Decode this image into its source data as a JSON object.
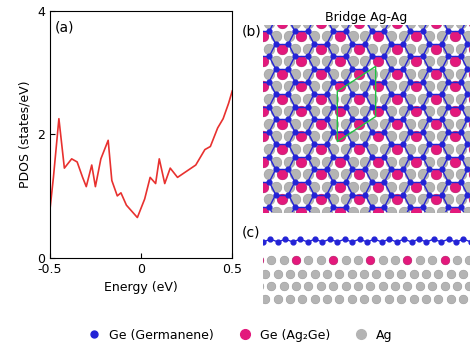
{
  "chart_data": {
    "type": "line",
    "x": [
      -0.5,
      -0.48,
      -0.45,
      -0.42,
      -0.38,
      -0.35,
      -0.32,
      -0.3,
      -0.27,
      -0.25,
      -0.22,
      -0.18,
      -0.16,
      -0.13,
      -0.11,
      -0.08,
      -0.05,
      -0.02,
      0.0,
      0.02,
      0.05,
      0.08,
      0.1,
      0.13,
      0.16,
      0.2,
      0.25,
      0.3,
      0.35,
      0.38,
      0.42,
      0.45,
      0.48,
      0.5
    ],
    "values": [
      0.75,
      1.3,
      2.25,
      1.45,
      1.6,
      1.55,
      1.3,
      1.15,
      1.5,
      1.15,
      1.6,
      1.9,
      1.25,
      1.0,
      1.05,
      0.85,
      0.75,
      0.65,
      0.8,
      0.95,
      1.3,
      1.2,
      1.6,
      1.2,
      1.45,
      1.3,
      1.4,
      1.5,
      1.75,
      1.8,
      2.1,
      2.25,
      2.5,
      2.7
    ],
    "color": "#e8312f",
    "xlabel": "Energy (eV)",
    "ylabel": "PDOS (states/eV)",
    "xlim": [
      -0.5,
      0.5
    ],
    "xticks": [
      -0.5,
      0,
      0.5
    ],
    "ylim": [
      0,
      4
    ],
    "yticks": [
      0,
      2,
      4
    ],
    "annotations": [
      "(a)"
    ]
  },
  "diagram": {
    "top_view": {
      "label": "(b)",
      "title": "Bridge Ag-Ag"
    },
    "side_view": {
      "label": "(c)"
    },
    "legend": [
      {
        "name": "Ge (Germanene)",
        "color": "#2323d6"
      },
      {
        "name": "Ge (Ag₂Ge)",
        "color": "#e3197c"
      },
      {
        "name": "Ag",
        "color": "#b4b4b4"
      }
    ]
  }
}
